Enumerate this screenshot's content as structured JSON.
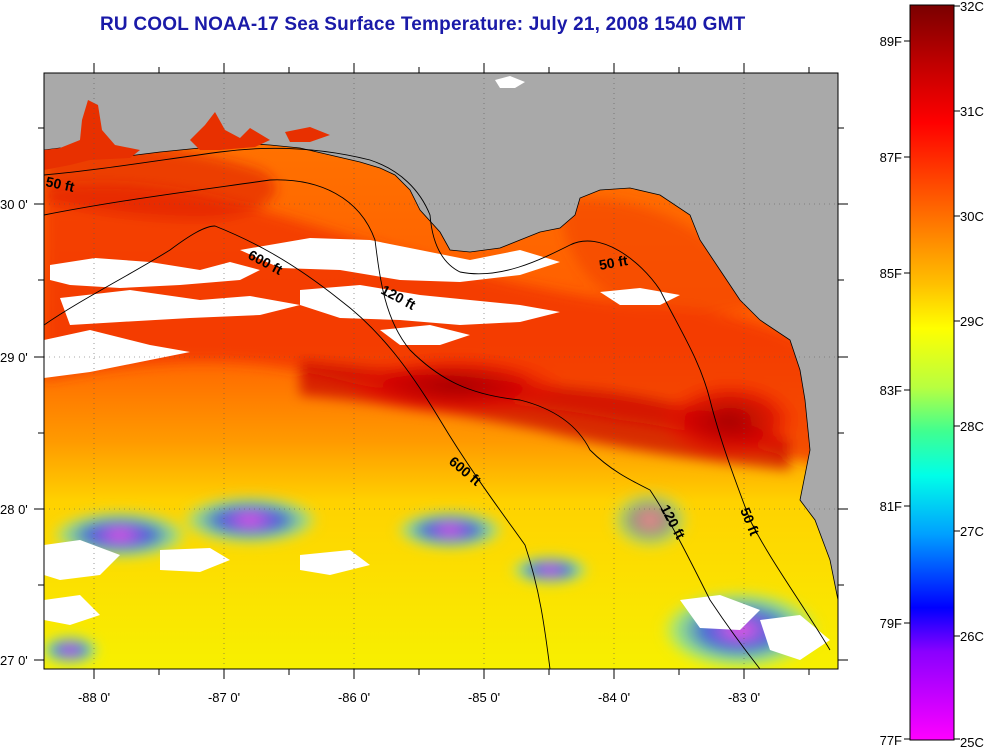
{
  "title": "RU COOL  NOAA-17  Sea Surface Temperature:  July 21, 2008 1540 GMT",
  "map": {
    "lat_labels": [
      "30 0'",
      "29 0'",
      "28 0'",
      "27 0'"
    ],
    "lon_labels": [
      "-88 0'",
      "-87 0'",
      "-86 0'",
      "-85 0'",
      "-84 0'",
      "-83 0'"
    ],
    "depth_contours": [
      "50 ft",
      "600 ft",
      "120 ft",
      "50 ft",
      "600 ft",
      "120 ft",
      "50 ft"
    ]
  },
  "colorbar": {
    "celsius_labels": [
      "32C",
      "31C",
      "30C",
      "29C",
      "28C",
      "27C",
      "26C",
      "25C"
    ],
    "fahrenheit_labels": [
      "89F",
      "87F",
      "85F",
      "83F",
      "81F",
      "79F",
      "77F"
    ]
  },
  "colors": {
    "title": "#1a1aa8",
    "land": "#a9a9a9",
    "cloud": "#ffffff",
    "warm": "#c40000",
    "cool": "#00b7ff"
  }
}
